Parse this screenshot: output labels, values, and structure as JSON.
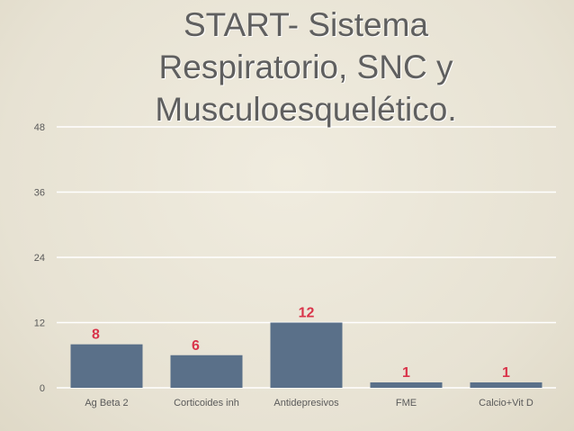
{
  "slide": {
    "title_lines": [
      "START- Sistema",
      "Respiratorio, SNC y",
      "Musculoesquelético."
    ]
  },
  "colors": {
    "bar": "#5a7089",
    "data_label": "#d9344a",
    "gridline": "#ffffff",
    "axis_text": "#5a5a5a"
  },
  "chart_data": {
    "type": "bar",
    "title": "START- Sistema Respiratorio, SNC y Musculoesquelético.",
    "xlabel": "",
    "ylabel": "",
    "categories": [
      "Ag Beta 2",
      "Corticoides inh",
      "Antidepresivos",
      "FME",
      "Calcio+Vit D"
    ],
    "values": [
      8,
      6,
      12,
      1,
      1
    ],
    "data_labels": [
      "8",
      "6",
      "12",
      "1",
      "1"
    ],
    "ylim": [
      0,
      48
    ],
    "yticks": [
      0,
      12,
      24,
      36,
      48
    ],
    "ytick_labels": [
      "0",
      "12",
      "24",
      "36",
      "48"
    ],
    "grid": true,
    "legend": "none"
  }
}
